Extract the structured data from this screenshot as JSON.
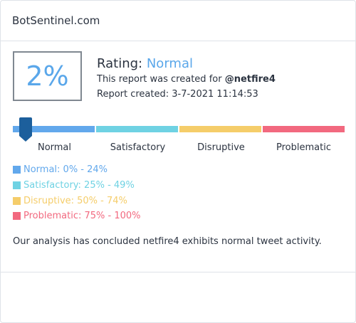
{
  "header": {
    "site_title": "BotSentinel.com"
  },
  "score": {
    "value": "2%",
    "fraction": 0.02
  },
  "rating": {
    "label": "Rating:",
    "value": "Normal"
  },
  "report": {
    "created_for_prefix": "This report was created for",
    "handle": "@netfire4",
    "created_label": "Report created: 3-7-2021 11:14:53"
  },
  "scale": {
    "categories": [
      {
        "label": "Normal",
        "color": "#62a8ec"
      },
      {
        "label": "Satisfactory",
        "color": "#6fd2e3"
      },
      {
        "label": "Disruptive",
        "color": "#f5cd6a"
      },
      {
        "label": "Problematic",
        "color": "#f2697f"
      }
    ],
    "marker_color": "#1c5f9c"
  },
  "legend": [
    {
      "text": "Normal: 0% - 24%",
      "color": "#62a8ec"
    },
    {
      "text": "Satisfactory: 25% - 49%",
      "color": "#6fd2e3"
    },
    {
      "text": "Disruptive: 50% - 74%",
      "color": "#f5cd6a"
    },
    {
      "text": "Problematic: 75% - 100%",
      "color": "#f2697f"
    }
  ],
  "summary": "Our analysis has concluded netfire4 exhibits normal tweet activity."
}
